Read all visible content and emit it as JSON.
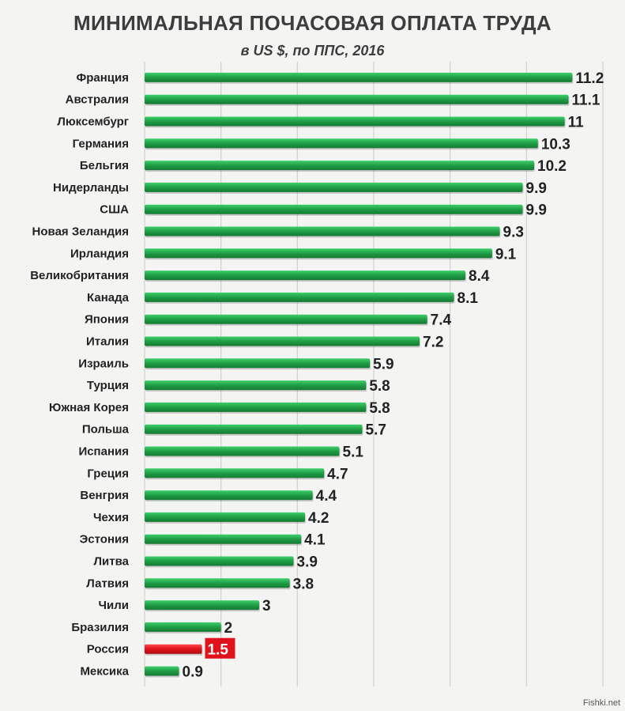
{
  "chart_data": {
    "type": "bar",
    "orientation": "horizontal",
    "title": "МИНИМАЛЬНАЯ ПОЧАСОВАЯ ОПЛАТА ТРУДА",
    "subtitle": "в US $, по ППС, 2016",
    "categories": [
      "Франция",
      "Австралия",
      "Люксембург",
      "Германия",
      "Бельгия",
      "Нидерланды",
      "США",
      "Новая Зеландия",
      "Ирландия",
      "Великобритания",
      "Канада",
      "Япония",
      "Италия",
      "Израиль",
      "Турция",
      "Южная Корея",
      "Польша",
      "Испания",
      "Греция",
      "Венгрия",
      "Чехия",
      "Эстония",
      "Литва",
      "Латвия",
      "Чили",
      "Бразилия",
      "Россия",
      "Мексика"
    ],
    "values": [
      11.2,
      11.1,
      11,
      10.3,
      10.2,
      9.9,
      9.9,
      9.3,
      9.1,
      8.4,
      8.1,
      7.4,
      7.2,
      5.9,
      5.8,
      5.8,
      5.7,
      5.1,
      4.7,
      4.4,
      4.2,
      4.1,
      3.9,
      3.8,
      3,
      2,
      1.5,
      0.9
    ],
    "value_labels": [
      "11.2",
      "11.1",
      "11",
      "10.3",
      "10.2",
      "9.9",
      "9.9",
      "9.3",
      "9.1",
      "8.4",
      "8.1",
      "7.4",
      "7.2",
      "5.9",
      "5.8",
      "5.8",
      "5.7",
      "5.1",
      "4.7",
      "4.4",
      "4.2",
      "4.1",
      "3.9",
      "3.8",
      "3",
      "2",
      "1.5",
      "0.9"
    ],
    "highlight": "Россия",
    "xlim": [
      0,
      12
    ],
    "grid": true,
    "colors": {
      "bar": "#1f9d45",
      "bar_light": "#34c862",
      "highlight": "#e0121b",
      "grid": "#cfd2cf"
    }
  },
  "watermark": "Fishki.net"
}
